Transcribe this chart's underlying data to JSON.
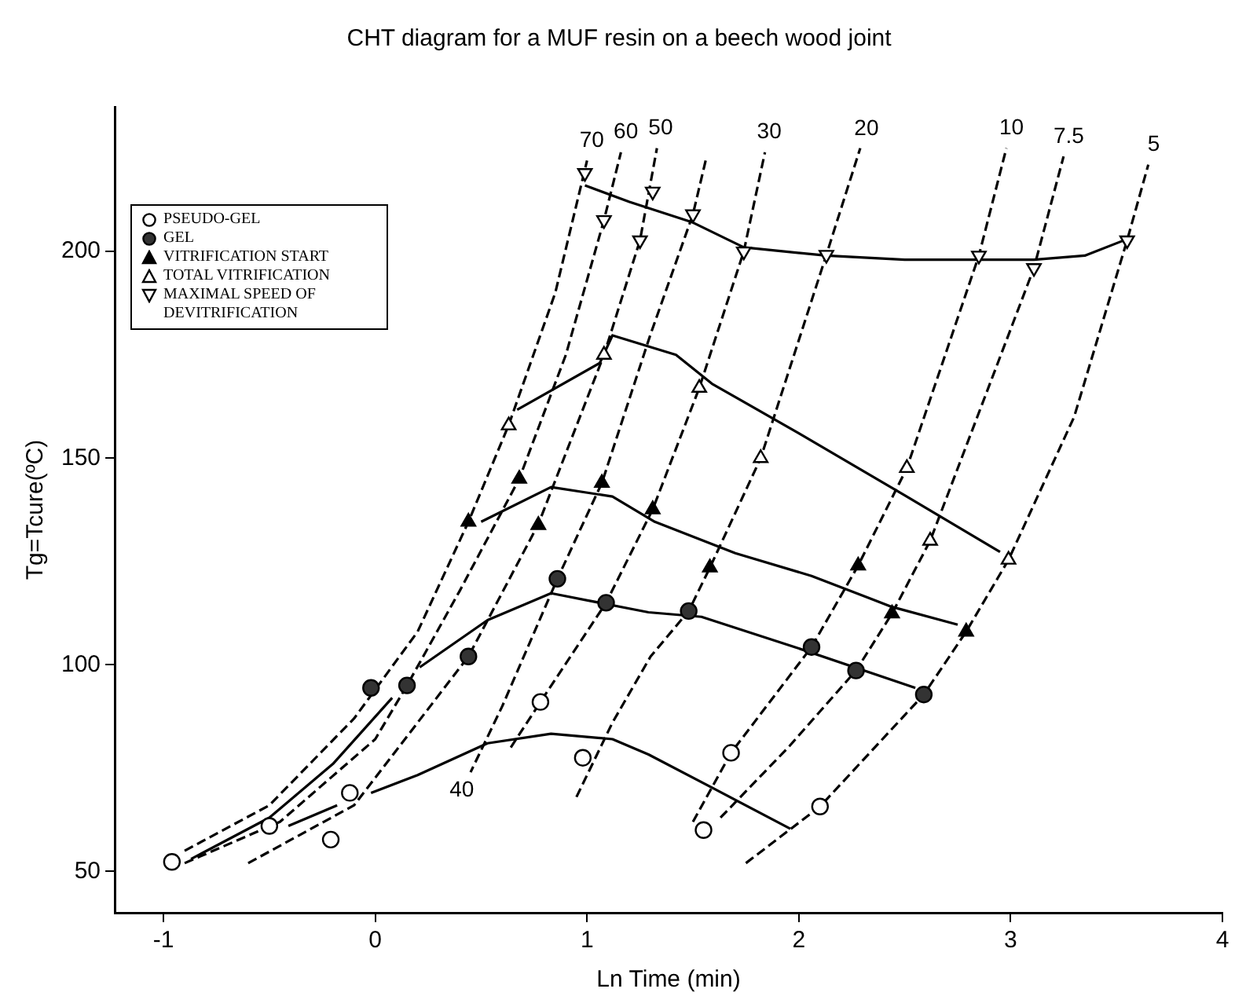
{
  "chart_data": {
    "type": "line",
    "title": "CHT diagram for a MUF resin on a beech wood joint",
    "xlabel": "Ln Time (min)",
    "ylabel": "Tg=Tcure(ºC)",
    "xlim": [
      -1.23,
      4
    ],
    "ylim": [
      40,
      235
    ],
    "xticks": [
      -1,
      0,
      1,
      2,
      3,
      4
    ],
    "yticks": [
      50,
      100,
      150,
      200
    ],
    "grid": false,
    "legend": "top left",
    "series": [
      {
        "type": "line",
        "color": "#000000",
        "marker": "none",
        "line_style": "solid",
        "x": [
          0.99,
          1.2,
          1.5,
          1.74,
          2.13,
          2.5,
          2.85,
          3.11,
          3.35,
          3.55
        ],
        "values": [
          216,
          212,
          207,
          201,
          199,
          198,
          198,
          198,
          199,
          203
        ]
      },
      {
        "type": "line",
        "color": "#000000",
        "marker": "none",
        "line_style": "solid",
        "x": [
          0.67,
          1.06,
          1.12,
          1.42,
          1.59,
          2.0,
          2.5,
          2.95
        ],
        "values": [
          161.7,
          173,
          179.7,
          175,
          168,
          156,
          141,
          127.3
        ]
      },
      {
        "type": "line",
        "color": "#000000",
        "marker": "none",
        "line_style": "solid",
        "x": [
          0.5,
          0.83,
          1.12,
          1.32,
          1.7,
          2.06,
          2.44,
          2.75
        ],
        "values": [
          134.6,
          143,
          140.7,
          134.6,
          127,
          121.5,
          114,
          109.7
        ]
      },
      {
        "type": "line",
        "color": "#000000",
        "marker": "none",
        "line_style": "solid",
        "x": [
          -0.87,
          -0.5,
          -0.2,
          0.08
        ],
        "values": [
          53,
          63,
          76,
          92
        ]
      },
      {
        "type": "line",
        "color": "#000000",
        "marker": "none",
        "line_style": "solid",
        "x": [
          0.21,
          0.53,
          0.83,
          1.29,
          1.54,
          1.98,
          2.55
        ],
        "values": [
          99.4,
          110.8,
          117.3,
          112.7,
          111.6,
          104.3,
          94.4
        ]
      },
      {
        "type": "line",
        "color": "#000000",
        "marker": "none",
        "line_style": "solid",
        "x": [
          -0.41,
          -0.18
        ],
        "values": [
          61,
          66
        ]
      },
      {
        "type": "line",
        "color": "#000000",
        "marker": "none",
        "line_style": "solid",
        "x": [
          -0.02,
          0.2,
          0.53,
          0.83,
          1.12,
          1.29,
          1.6,
          1.96
        ],
        "values": [
          69,
          73.3,
          81,
          83.3,
          82,
          78.3,
          70,
          60.3
        ]
      },
      {
        "type": "line",
        "name": "70",
        "color": "#000000",
        "marker": "none",
        "line_style": "dashed",
        "x": [
          -0.9,
          -0.5,
          -0.1,
          0.2,
          0.44,
          0.63,
          0.85,
          1.0
        ],
        "values": [
          55,
          66,
          87,
          108,
          134.6,
          158,
          190,
          222
        ]
      },
      {
        "type": "line",
        "name": "60",
        "color": "#000000",
        "marker": "none",
        "line_style": "dashed",
        "x": [
          -0.9,
          -0.45,
          0,
          0.15,
          0.4,
          0.68,
          0.9,
          1.08,
          1.16
        ],
        "values": [
          52,
          62,
          82,
          95,
          118,
          145,
          175,
          207.6,
          224
        ]
      },
      {
        "type": "line",
        "name": "50",
        "color": "#000000",
        "marker": "none",
        "line_style": "dashed",
        "x": [
          -0.6,
          -0.1,
          0.44,
          0.77,
          1.08,
          1.25,
          1.33
        ],
        "values": [
          52,
          66,
          102,
          134,
          175,
          202.7,
          225
        ]
      },
      {
        "type": "line",
        "name": "40",
        "color": "#000000",
        "marker": "none",
        "line_style": "dashed",
        "x": [
          1.56,
          1.5,
          1.3,
          1.07,
          0.86,
          0.6,
          0.45
        ],
        "values": [
          222,
          209,
          180,
          144,
          120.8,
          90,
          74
        ]
      },
      {
        "type": "line",
        "name": "30",
        "color": "#000000",
        "marker": "none",
        "line_style": "dashed",
        "x": [
          0.64,
          0.78,
          1.09,
          1.31,
          1.53,
          1.74,
          1.84
        ],
        "values": [
          80,
          91,
          115,
          137.6,
          167,
          200,
          224
        ]
      },
      {
        "type": "line",
        "name": "20",
        "color": "#000000",
        "marker": "none",
        "line_style": "dashed",
        "x": [
          0.95,
          1.12,
          1.3,
          1.48,
          1.58,
          1.82,
          2.13,
          2.29
        ],
        "values": [
          68,
          86,
          102,
          113,
          123.5,
          150,
          199.2,
          225
        ]
      },
      {
        "type": "line",
        "name": "10",
        "color": "#000000",
        "marker": "none",
        "line_style": "dashed",
        "x": [
          1.5,
          1.68,
          2.06,
          2.28,
          2.51,
          2.85,
          2.98
        ],
        "values": [
          62,
          78.7,
          104.3,
          124,
          147.6,
          199,
          225
        ]
      },
      {
        "type": "line",
        "name": "7.5",
        "color": "#000000",
        "marker": "none",
        "line_style": "dashed",
        "x": [
          1.63,
          1.95,
          2.27,
          2.44,
          2.62,
          3.11,
          3.25
        ],
        "values": [
          63,
          80,
          98.6,
          112.4,
          130,
          196,
          223
        ]
      },
      {
        "type": "line",
        "name": "5",
        "color": "#000000",
        "marker": "none",
        "line_style": "dashed",
        "x": [
          1.75,
          2.1,
          2.59,
          2.79,
          2.99,
          3.3,
          3.55,
          3.65
        ],
        "values": [
          52,
          65.7,
          92.8,
          108,
          125.4,
          160,
          202.7,
          221
        ]
      },
      {
        "type": "scatter",
        "name": "PSEUDO-GEL",
        "color": "#ffffff",
        "marker": "circle",
        "x": [
          -0.96,
          -0.5,
          -0.12,
          -0.21,
          0.78,
          0.98,
          1.68,
          1.55,
          2.1
        ],
        "values": [
          52.3,
          61,
          69,
          57.7,
          91,
          77.5,
          78.7,
          60,
          65.7
        ]
      },
      {
        "type": "scatter",
        "name": "GEL",
        "color": "#333333",
        "marker": "circle",
        "x": [
          -0.02,
          0.15,
          0.44,
          0.86,
          1.09,
          1.48,
          2.06,
          2.27,
          2.59
        ],
        "values": [
          94.4,
          95,
          102,
          120.8,
          115,
          113,
          104.3,
          98.6,
          92.8
        ]
      },
      {
        "type": "scatter",
        "name": "VITRIFICATION START",
        "color": "#000000",
        "marker": "triangle",
        "x": [
          0.44,
          0.68,
          0.77,
          1.07,
          1.31,
          1.58,
          2.28,
          2.44,
          2.79
        ],
        "values": [
          134.6,
          145,
          133.8,
          144,
          137.6,
          123.5,
          124,
          112.4,
          108
        ]
      },
      {
        "type": "scatter",
        "name": "TOTAL VITRIFICATION",
        "color": "#ffffff",
        "marker": "triangle",
        "x": [
          0.63,
          1.08,
          1.53,
          1.82,
          2.51,
          2.62,
          2.99
        ],
        "values": [
          157.9,
          175,
          167,
          150,
          147.6,
          130,
          125.4
        ]
      },
      {
        "type": "scatter",
        "name": "MAXIMAL SPEED OF DEVITRIFICATION",
        "color": "#ffffff",
        "marker": "triangle_down",
        "x": [
          0.99,
          1.08,
          1.25,
          1.31,
          1.5,
          1.74,
          2.13,
          2.85,
          3.11,
          3.55
        ],
        "values": [
          219,
          207.6,
          202.7,
          214.5,
          209,
          200,
          199.2,
          199,
          196,
          202.7
        ]
      }
    ]
  }
}
